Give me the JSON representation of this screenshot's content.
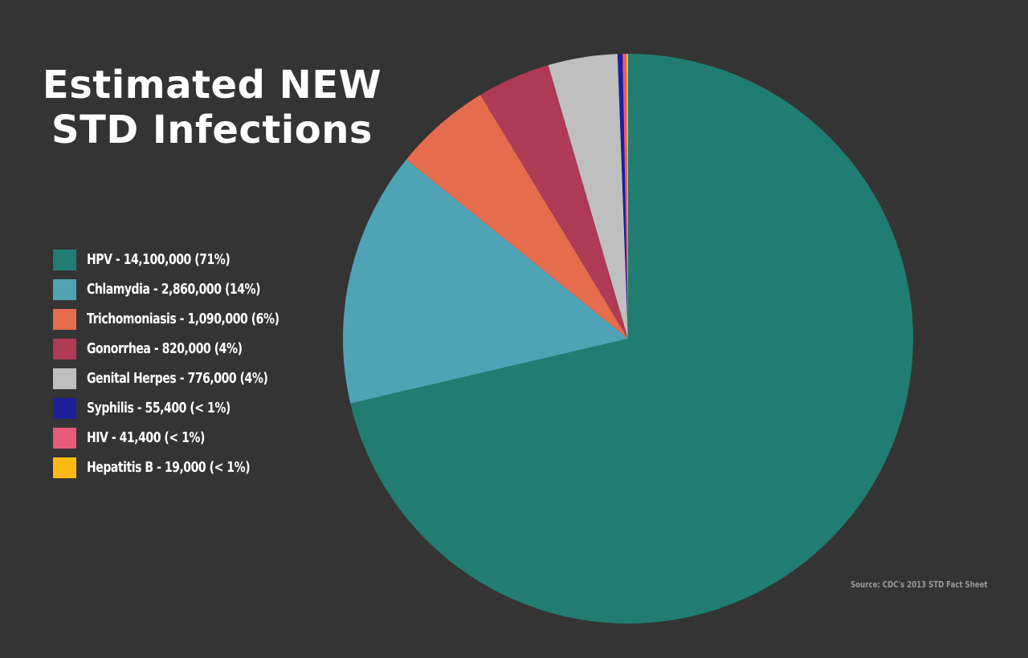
{
  "chart_data": {
    "type": "pie",
    "title_lines": [
      "Estimated NEW",
      "STD Infections"
    ],
    "slices": [
      {
        "label": "HPV - 14,100,000 (71%)",
        "name": "HPV",
        "value": 14100000,
        "color": "#217D72"
      },
      {
        "label": "Chlamydia - 2,860,000 (14%)",
        "name": "Chlamydia",
        "value": 2860000,
        "color": "#4FA3B5"
      },
      {
        "label": "Trichomoniasis - 1,090,000 (6%)",
        "name": "Trichomoniasis",
        "value": 1090000,
        "color": "#E56C4C"
      },
      {
        "label": "Gonorrhea - 820,000 (4%)",
        "name": "Gonorrhea",
        "value": 820000,
        "color": "#AE3A55"
      },
      {
        "label": "Genital Herpes - 776,000 (4%)",
        "name": "Genital Herpes",
        "value": 776000,
        "color": "#BFBFBF"
      },
      {
        "label": "Syphilis - 55,400 (< 1%)",
        "name": "Syphilis",
        "value": 55400,
        "color": "#1F1F9C"
      },
      {
        "label": "HIV - 41,400 (< 1%)",
        "name": "HIV",
        "value": 41400,
        "color": "#E55A7A"
      },
      {
        "label": "Hepatitis B - 19,000 (< 1%)",
        "name": "Hepatitis B",
        "value": 19000,
        "color": "#FDB913"
      }
    ],
    "legend_position": "left",
    "source": "Source: CDC's 2013 STD Fact Sheet"
  }
}
